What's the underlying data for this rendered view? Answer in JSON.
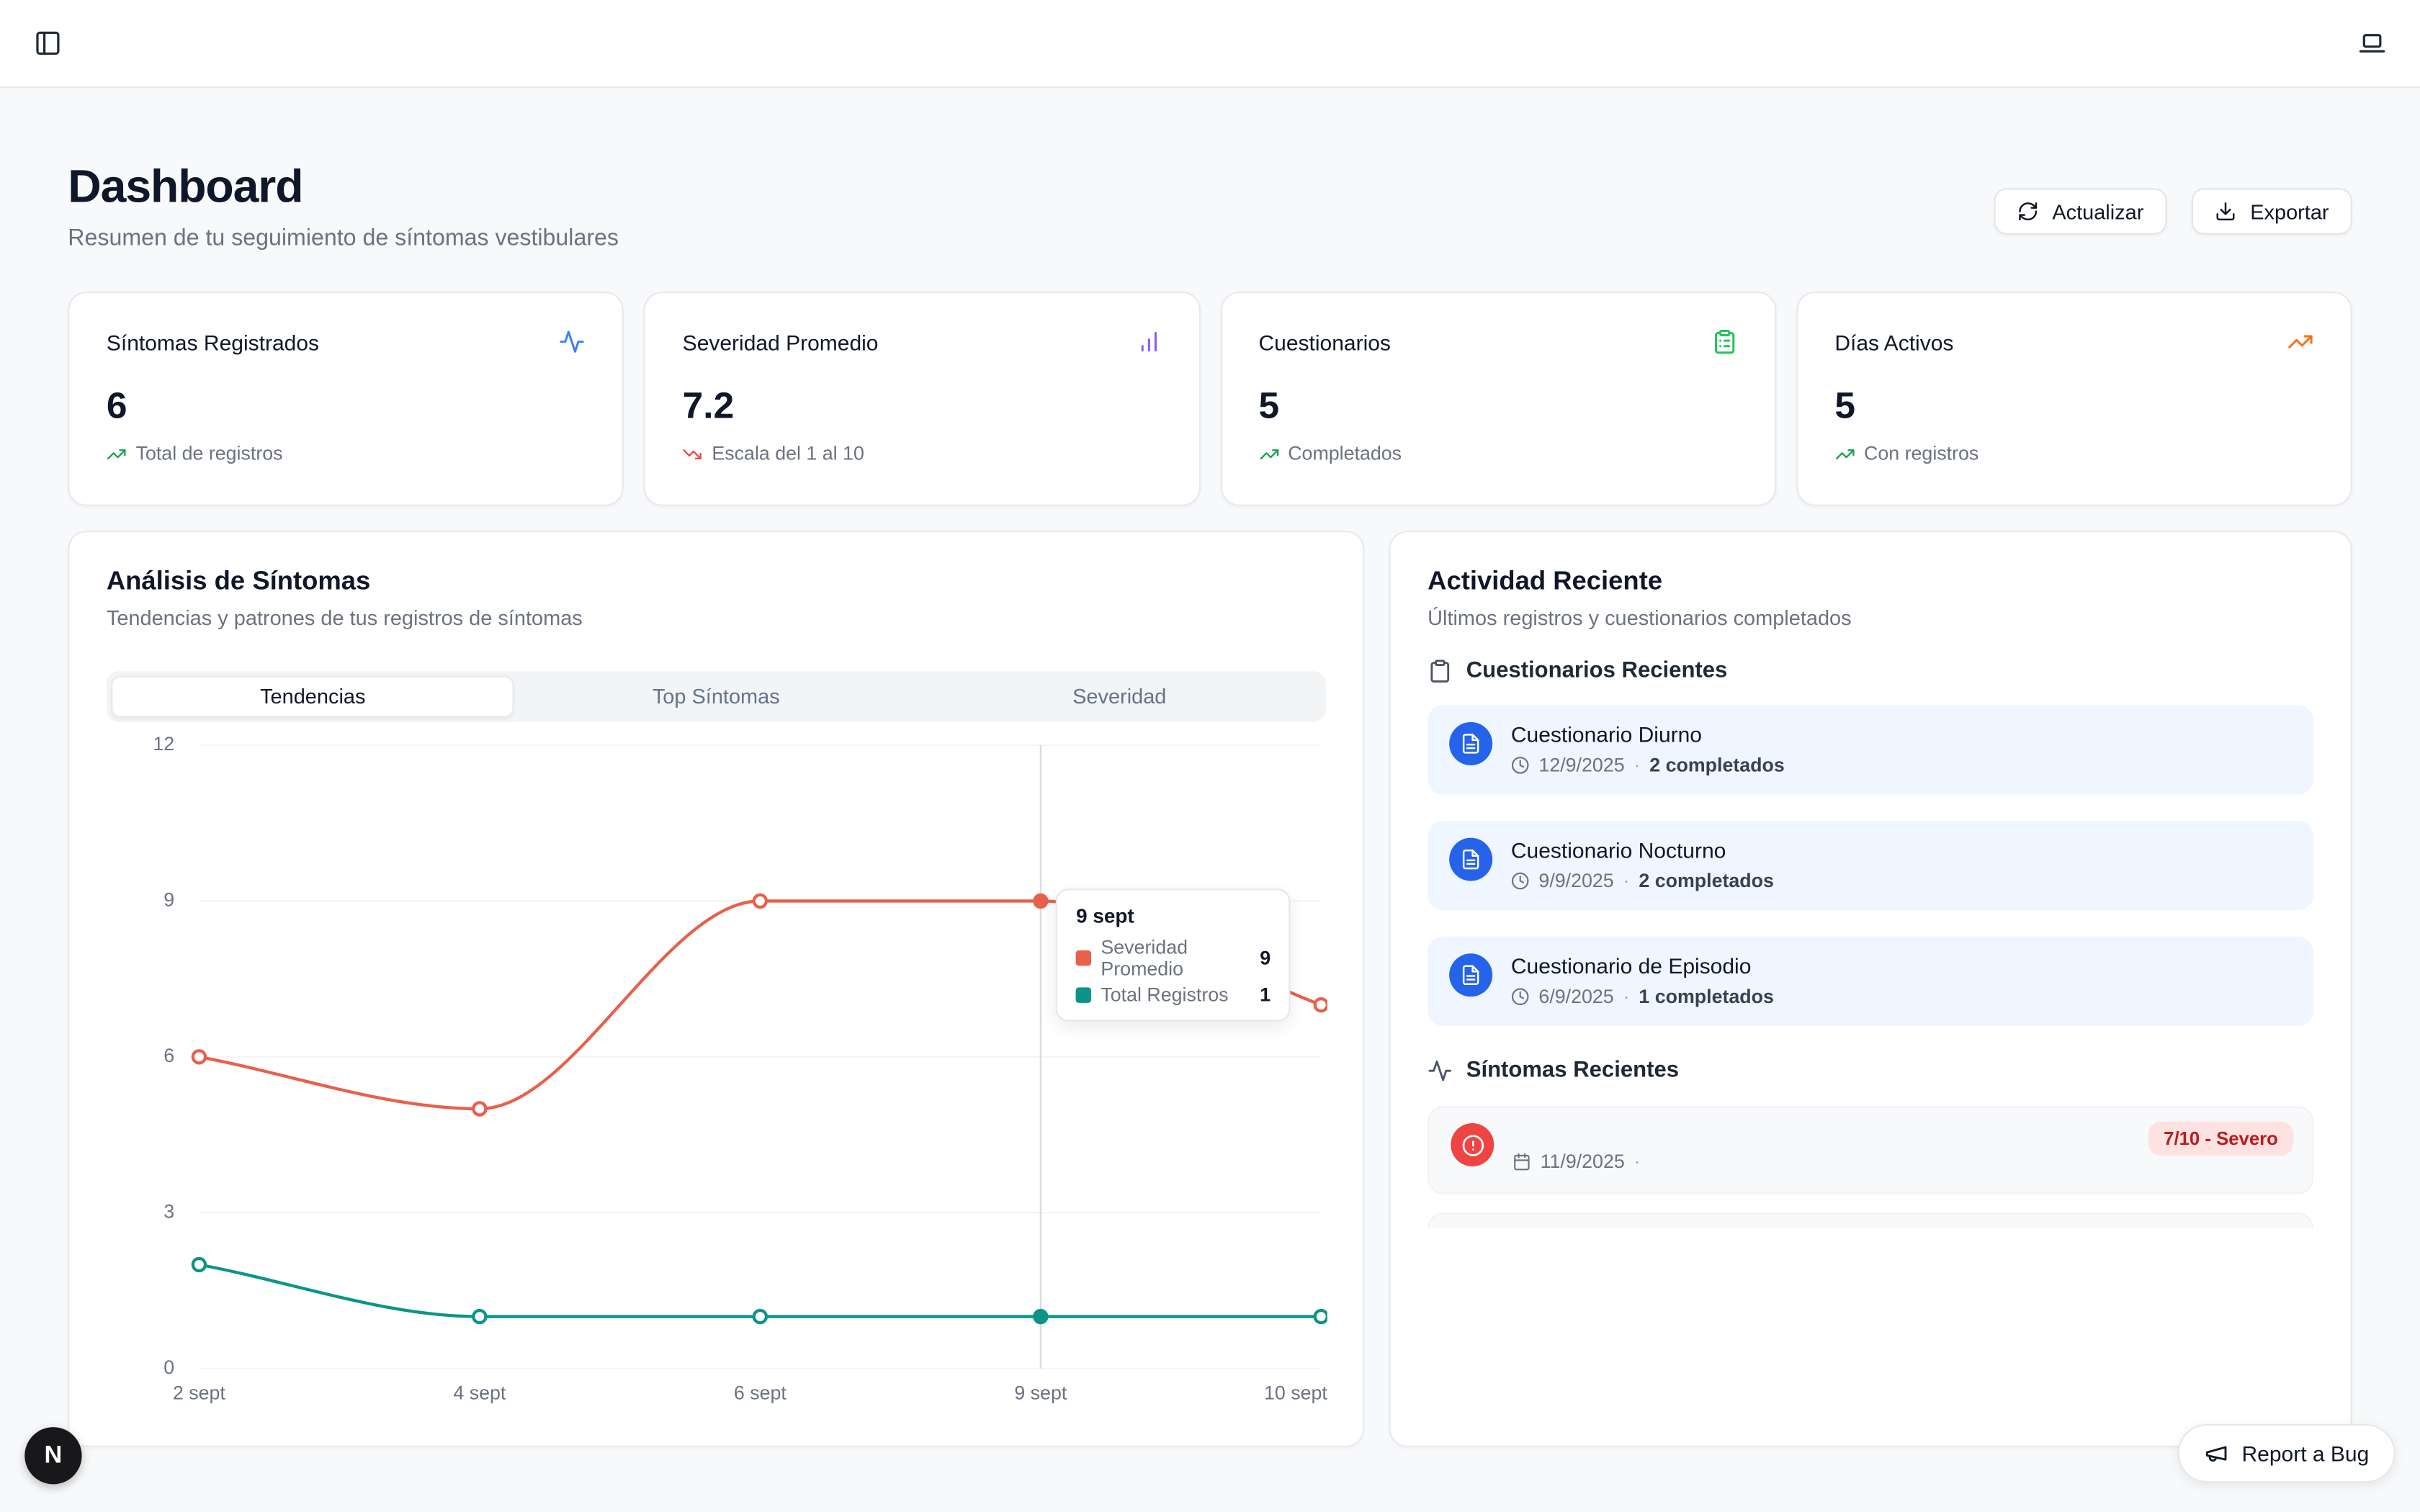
{
  "topbar": {
    "sidebar_toggle": "panel-left",
    "device_toggle": "laptop"
  },
  "header": {
    "title": "Dashboard",
    "subtitle": "Resumen de tu seguimiento de síntomas vestibulares",
    "refresh_label": "Actualizar",
    "export_label": "Exportar"
  },
  "stats": [
    {
      "title": "Síntomas Registrados",
      "value": "6",
      "note": "Total de registros",
      "icon": "activity-icon",
      "icon_color": "#3b82f6",
      "trend_color": "#16a34a"
    },
    {
      "title": "Severidad Promedio",
      "value": "7.2",
      "note": "Escala del 1 al 10",
      "icon": "bar-chart-icon",
      "icon_color": "#8b5cf6",
      "trend_color": "#ef4444"
    },
    {
      "title": "Cuestionarios",
      "value": "5",
      "note": "Completados",
      "icon": "clipboard-icon",
      "icon_color": "#22c55e",
      "trend_color": "#16a34a"
    },
    {
      "title": "Días Activos",
      "value": "5",
      "note": "Con registros",
      "icon": "trending-up-icon",
      "icon_color": "#f97316",
      "trend_color": "#16a34a"
    }
  ],
  "analysis": {
    "title": "Análisis de Síntomas",
    "subtitle": "Tendencias y patrones de tus registros de síntomas",
    "tabs": [
      {
        "label": "Tendencias",
        "active": true
      },
      {
        "label": "Top Síntomas",
        "active": false
      },
      {
        "label": "Severidad",
        "active": false
      }
    ],
    "tooltip": {
      "title": "9 sept",
      "rows": [
        {
          "label": "Severidad Promedio",
          "value": "9"
        },
        {
          "label": "Total Registros",
          "value": "1"
        }
      ]
    }
  },
  "chart_data": {
    "type": "line",
    "x": [
      "2 sept",
      "4 sept",
      "6 sept",
      "9 sept",
      "10 sept"
    ],
    "series": [
      {
        "name": "Severidad Promedio",
        "color": "#e8604c",
        "values": [
          6,
          5,
          9,
          9,
          7
        ]
      },
      {
        "name": "Total Registros",
        "color": "#0d9488",
        "values": [
          2,
          1,
          1,
          1,
          1
        ]
      }
    ],
    "ylim": [
      0,
      12
    ],
    "yticks": [
      0,
      3,
      6,
      9,
      12
    ],
    "hover_index": 3,
    "grid": true,
    "legend": "none"
  },
  "activity": {
    "title": "Actividad Reciente",
    "subtitle": "Últimos registros y cuestionarios completados",
    "sections": {
      "questionnaires": "Cuestionarios Recientes",
      "symptoms": "Síntomas Recientes"
    },
    "separator": "·",
    "questionnaires": [
      {
        "title": "Cuestionario Diurno",
        "date": "12/9/2025",
        "count": "2 completados"
      },
      {
        "title": "Cuestionario Nocturno",
        "date": "9/9/2025",
        "count": "2 completados"
      },
      {
        "title": "Cuestionario de Episodio",
        "date": "6/9/2025",
        "count": "1 completados"
      }
    ],
    "symptoms": [
      {
        "date": "11/9/2025",
        "badge": "7/10 - Severo",
        "badge_bg": "#fee2e2",
        "badge_color": "#b91c1c"
      }
    ]
  },
  "floating": {
    "brand_letter": "N",
    "report_bug": "Report a Bug"
  }
}
